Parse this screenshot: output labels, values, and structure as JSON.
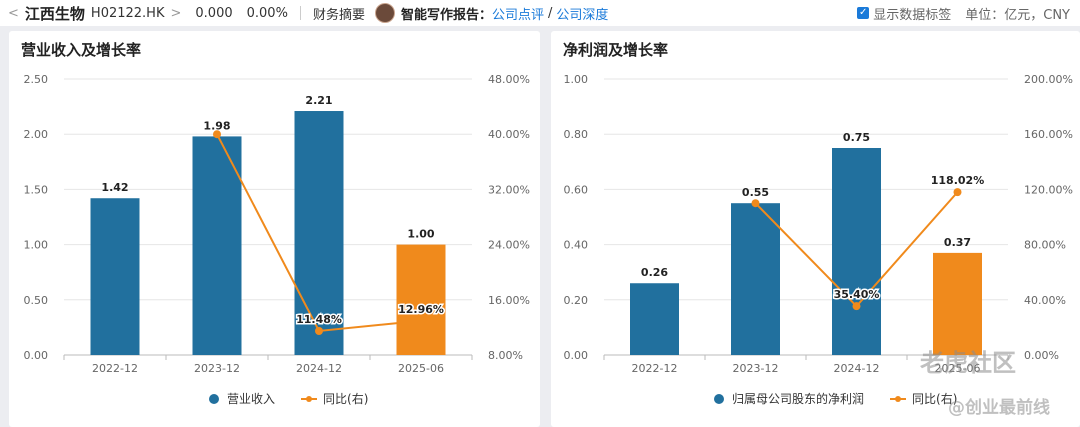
{
  "header": {
    "back": "<",
    "name": "江西生物",
    "code": "H02122.HK",
    "chevron": ">",
    "price": "0.000",
    "change": "0.00%",
    "financial_summary": "财务摘要",
    "report_label": "智能写作报告：",
    "link1": "公司点评",
    "slash": "/",
    "link2": "公司深度",
    "show_labels": "显示数据标签",
    "unit": "单位：亿元，CNY"
  },
  "watermark": {
    "brand": "老虎社区",
    "author": "@创业最前线"
  },
  "chart_data": [
    {
      "type": "bar",
      "title": "营业收入及增长率",
      "categories": [
        "2022-12",
        "2023-12",
        "2024-12",
        "2025-06"
      ],
      "ylim": [
        0,
        2.5
      ],
      "yticks": [
        "0.00",
        "0.50",
        "1.00",
        "1.50",
        "2.00",
        "2.50"
      ],
      "y2lim": [
        8,
        48
      ],
      "y2ticks": [
        "8.00%",
        "16.00%",
        "24.00%",
        "32.00%",
        "40.00%",
        "48.00%"
      ],
      "series": [
        {
          "name": "营业收入",
          "values": [
            1.42,
            1.98,
            2.21,
            1.0
          ],
          "labels": [
            "1.42",
            "1.98",
            "2.21",
            "1.00"
          ],
          "colors": [
            "#21709e",
            "#21709e",
            "#21709e",
            "#f08a1c"
          ]
        },
        {
          "name": "同比(右)",
          "values": [
            null,
            40.0,
            11.48,
            12.96
          ],
          "labels": [
            "",
            "",
            "11.48%",
            "12.96%"
          ],
          "color": "#f08a1c"
        }
      ],
      "grid": true,
      "legend": "bottom-center"
    },
    {
      "type": "bar",
      "title": "净利润及增长率",
      "categories": [
        "2022-12",
        "2023-12",
        "2024-12",
        "2025-06"
      ],
      "ylim": [
        0,
        1.0
      ],
      "yticks": [
        "0.00",
        "0.20",
        "0.40",
        "0.60",
        "0.80",
        "1.00"
      ],
      "y2lim": [
        0,
        200
      ],
      "y2ticks": [
        "0.00%",
        "40.00%",
        "80.00%",
        "120.00%",
        "160.00%",
        "200.00%"
      ],
      "series": [
        {
          "name": "归属母公司股东的净利润",
          "values": [
            0.26,
            0.55,
            0.75,
            0.37
          ],
          "labels": [
            "0.26",
            "0.55",
            "0.75",
            "0.37"
          ],
          "colors": [
            "#21709e",
            "#21709e",
            "#21709e",
            "#f08a1c"
          ]
        },
        {
          "name": "同比(右)",
          "values": [
            null,
            110.0,
            35.4,
            118.02
          ],
          "labels": [
            "",
            "",
            "35.40%",
            "118.02%"
          ],
          "color": "#f08a1c"
        }
      ],
      "grid": true,
      "legend": "bottom-center"
    }
  ]
}
